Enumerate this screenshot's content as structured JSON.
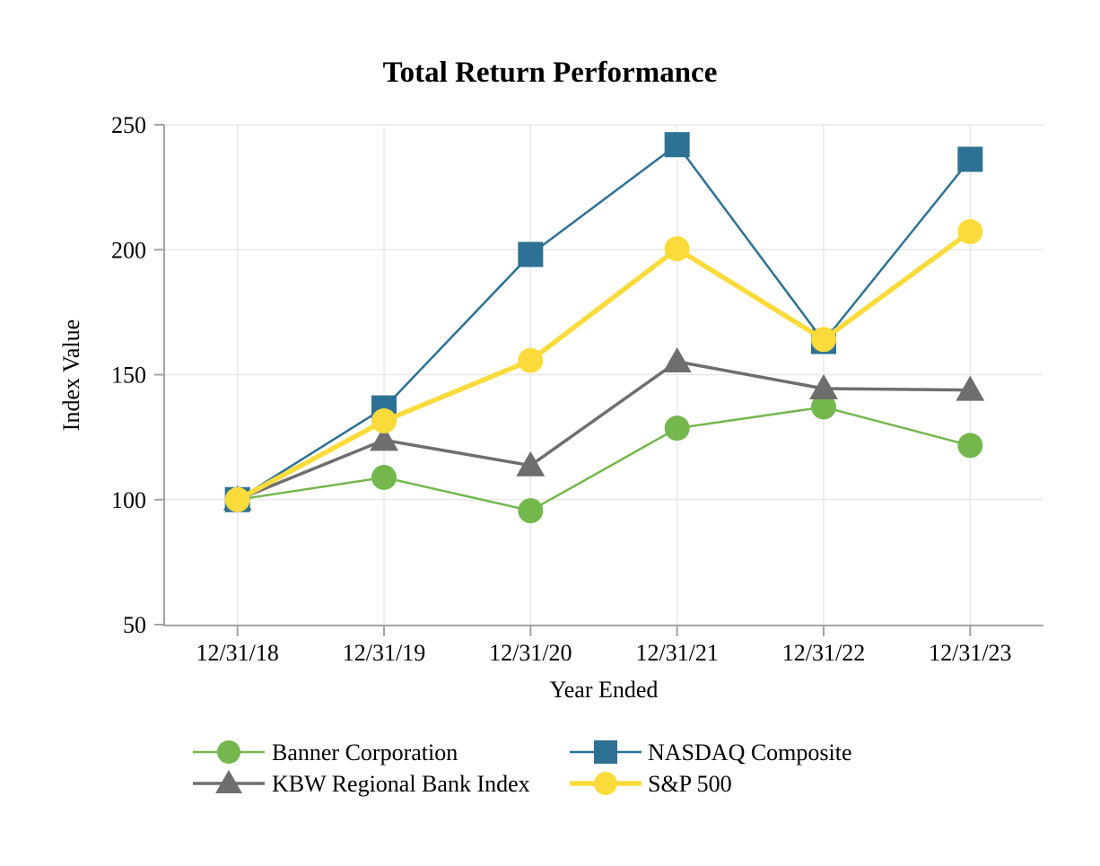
{
  "chart_data": {
    "type": "line",
    "title": "Total Return Performance",
    "xlabel": "Year Ended",
    "ylabel": "Index Value",
    "categories": [
      "12/31/18",
      "12/31/19",
      "12/31/20",
      "12/31/21",
      "12/31/22",
      "12/31/23"
    ],
    "ylim": [
      50,
      250
    ],
    "yticks": [
      50,
      100,
      150,
      200,
      250
    ],
    "grid": true,
    "legend_position": "bottom",
    "series": [
      {
        "name": "Banner Corporation",
        "color": "#73B74D",
        "marker": "circle",
        "line_width": 2.5,
        "values": [
          100.0,
          108.89,
          95.55,
          128.57,
          137.09,
          121.67
        ]
      },
      {
        "name": "KBW Regional Bank Index",
        "color": "#6E6E6E",
        "marker": "triangle",
        "line_width": 3.5,
        "values": [
          100.0,
          123.81,
          113.65,
          155.21,
          144.45,
          143.86
        ]
      },
      {
        "name": "NASDAQ Composite",
        "color": "#2D7194",
        "marker": "square",
        "line_width": 2.5,
        "values": [
          100.0,
          136.69,
          198.1,
          242.03,
          163.28,
          236.17
        ]
      },
      {
        "name": "S&P 500",
        "color": "#FADB3C",
        "marker": "circle",
        "line_width": 5.5,
        "values": [
          100.0,
          131.49,
          155.68,
          200.37,
          164.08,
          207.21
        ]
      }
    ],
    "legend_columns": [
      [
        "Banner Corporation",
        "KBW Regional Bank Index"
      ],
      [
        "NASDAQ Composite",
        "S&P 500"
      ]
    ],
    "colors": {
      "axis": "#A3A3A3",
      "grid": "#E8E8E8",
      "text": "#000000",
      "background": "#FFFFFF"
    }
  }
}
